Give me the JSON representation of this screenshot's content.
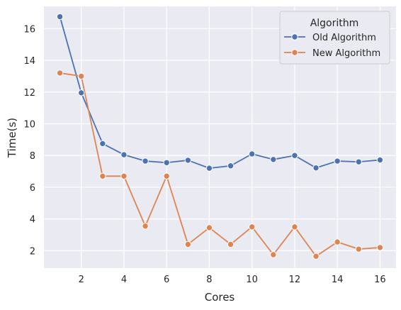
{
  "chart_data": {
    "type": "line",
    "xlabel": "Cores",
    "ylabel": "Time(s)",
    "xlim": [
      0.25,
      16.75
    ],
    "ylim": [
      0.9,
      17.4
    ],
    "xticks": [
      2,
      4,
      6,
      8,
      10,
      12,
      14,
      16
    ],
    "yticks": [
      2,
      4,
      6,
      8,
      10,
      12,
      14,
      16
    ],
    "grid": true,
    "legend": {
      "title": "Algorithm",
      "placement": "top-right"
    },
    "x": [
      1,
      2,
      3,
      4,
      5,
      6,
      7,
      8,
      9,
      10,
      11,
      12,
      13,
      14,
      15,
      16
    ],
    "series": [
      {
        "name": "Old Algorithm",
        "color": "#4c72b0",
        "values": [
          16.75,
          11.95,
          8.75,
          8.05,
          7.65,
          7.55,
          7.7,
          7.2,
          7.35,
          8.1,
          7.75,
          8.0,
          7.22,
          7.65,
          7.6,
          7.72
        ]
      },
      {
        "name": "New Algorithm",
        "color": "#dd8452",
        "values": [
          13.2,
          13.0,
          6.7,
          6.7,
          3.55,
          6.7,
          2.4,
          3.45,
          2.4,
          3.5,
          1.75,
          3.5,
          1.65,
          2.55,
          2.1,
          2.2
        ]
      }
    ]
  }
}
